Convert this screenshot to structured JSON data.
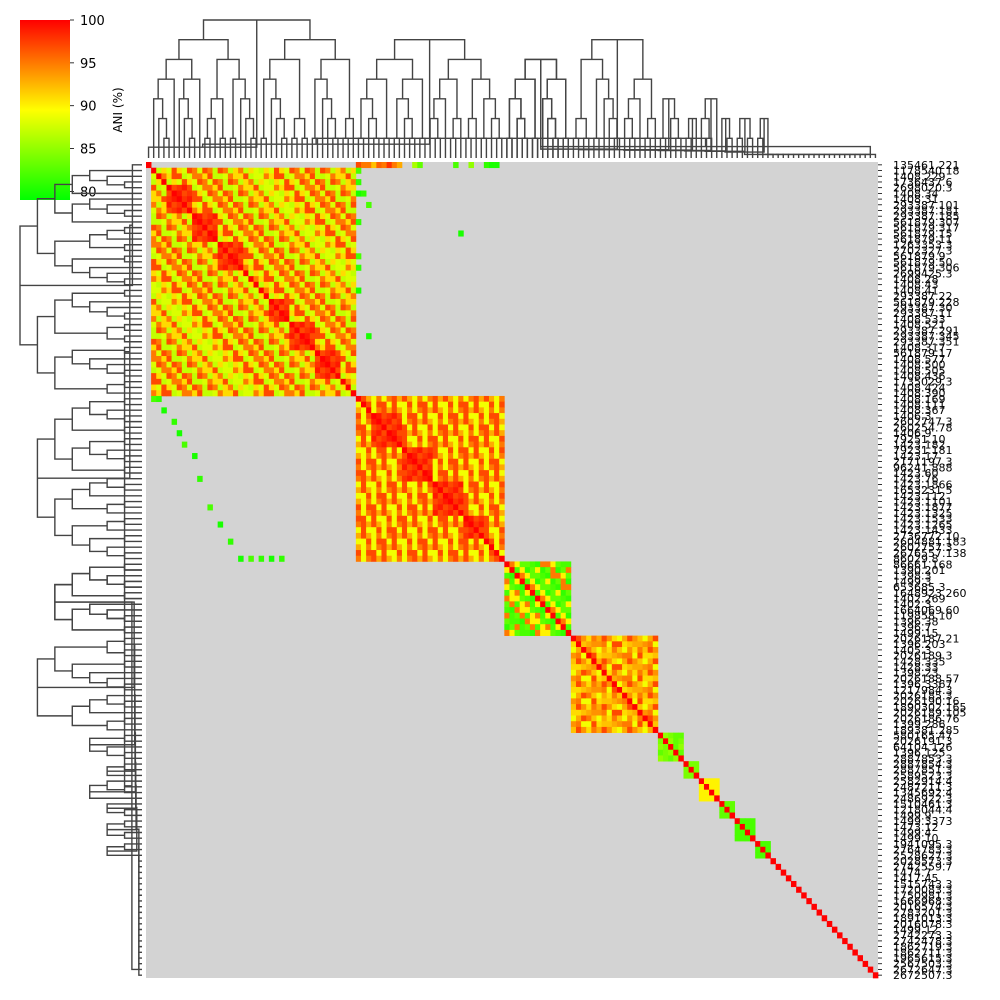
{
  "chart_data": {
    "type": "heatmap",
    "title": "",
    "xlabel": "",
    "ylabel": "",
    "colorbar": {
      "label": "ANI (%)",
      "ticks": [
        80,
        85,
        90,
        95,
        100
      ],
      "range": [
        79,
        100
      ],
      "colors": [
        "#00ff00",
        "#ffff00",
        "#ff0000"
      ]
    },
    "missing_color": "#d3d3d3",
    "dendrograms": [
      "top",
      "left"
    ],
    "row_labels": [
      "135461.221",
      "1178540.18",
      "1408.229",
      "1736437.6",
      "2698020.3",
      "1408.34",
      "1408.31",
      "293387.101",
      "293387.181",
      "293387.185",
      "561879.307",
      "561879.317",
      "561879.15",
      "561879.11",
      "1263353.3",
      "2702327.3",
      "561879.9",
      "561879.50",
      "561879.306",
      "2699425.3",
      "1408.28",
      "1408.43",
      "1408.41",
      "293387.22",
      "561879.228",
      "293387.30",
      "293387.11",
      "1408.533",
      "1408.521",
      "293387.291",
      "293387.345",
      "293387.351",
      "1408.317",
      "561879.17",
      "1408.577",
      "1408.500",
      "1408.505",
      "1408.436",
      "1735029.3",
      "1408.424",
      "1408.390",
      "1408.169",
      "1408.111",
      "1408.367",
      "1406.3",
      "2602747.3",
      "260254.78",
      "1406.9",
      "79251.10",
      "1423.182",
      "79231.181",
      "1423.17",
      "2171197.3",
      "96241.888",
      "1423.60",
      "1423.76",
      "1423.1866",
      "1653231.5",
      "1423.112",
      "1423.1101",
      "1423.1877",
      "1423.1325",
      "1423.1533",
      "1423.1265",
      "1423.1433",
      "2736772.10",
      "2604881.183",
      "2602757.3",
      "2676557.138",
      "86029.8",
      "86661.168",
      "1390.201",
      "1398.3",
      "1499.3",
      "653685.3",
      "1648923.260",
      "1402.269",
      "1402.3",
      "1664069.60",
      "119858.10",
      "1396.38",
      "1396.7",
      "1499.15",
      "2026187.21",
      "1396.203",
      "1405.3",
      "2026189.3",
      "1428.335",
      "1428.33",
      "1398.23",
      "2026188.57",
      "1396.3367",
      "1217984.3",
      "2026185.3",
      "2026190.16",
      "1890302.165",
      "2026189.105",
      "2026186.76",
      "1399.286",
      "189381.285",
      "580165.47",
      "2026191.3",
      "64104.126",
      "1396.125",
      "2887853.3",
      "2887854.3",
      "2887851.3",
      "2589523.3",
      "2582914.4",
      "2487211.3",
      "1345692.4",
      "2486922.3",
      "1510461.3",
      "1218044.4",
      "1499.9",
      "1499.3373",
      "1473.12",
      "1499.4",
      "1499.10",
      "1941095.3",
      "2764783.3",
      "2528627.3",
      "2028573.3",
      "2742559.7",
      "1474.7",
      "1417.45",
      "1515743.3",
      "1720083.3",
      "1750981.3",
      "1666968.3",
      "2016574.3",
      "2783201.3",
      "1891013.3",
      "2016078.3",
      "1499.12",
      "2742273.3",
      "2742478.3",
      "1862719.3",
      "1862711.3",
      "1965615.3",
      "2567503.3",
      "2672647.3",
      "2672507.3"
    ],
    "visible_row_labels": [
      "135461.221",
      "1178540.18",
      "1408.229",
      "1736437.6",
      "2698020.3",
      "1408.34",
      "1408.31",
      "293387.101",
      "293387.181",
      "293387.185",
      "561879.307",
      "561879.317",
      "561879.15",
      "561879.11",
      "1263353.3",
      "2702327.3",
      "561879.9",
      "561879.50",
      "561879.306",
      "2699425.3",
      "1408.28",
      "1408.43",
      "1408.41",
      "293387.22",
      "561879.228",
      "293387.30",
      "293387.11",
      "1408.533",
      "1408.521",
      "293387.291",
      "293387.345",
      "293387.351",
      "1408.317",
      "561879.17",
      "1408.577",
      "1408.500",
      "1408.505",
      "1408.436",
      "1735029.3",
      "1408.424",
      "1408.390",
      "1408.169",
      "1408.111",
      "1408.367",
      "1406.3",
      "2602747.3",
      "260254.78",
      "1406.9",
      "79251.10",
      "1423.182",
      "79231.181",
      "1423.17",
      "2171197.3",
      "96241.888",
      "1423.60",
      "1423.76",
      "1423.1866",
      "1653231.5",
      "1423.112",
      "1423.1101",
      "1423.1877",
      "1423.1325",
      "1423.1533",
      "1423.1265",
      "1423.1433",
      "2736772.10",
      "2604881.183",
      "2602757.3",
      "2676557.138",
      "86029.8",
      "86661.168",
      "1390.201",
      "1398.3",
      "1499.3",
      "653685.3",
      "1648923.260",
      "1402.269",
      "1402.3",
      "1664069.60",
      "119858.10",
      "1396.38",
      "1396.7",
      "1499.15",
      "2026187.21",
      "1396.203",
      "1405.3",
      "2026189.3",
      "1428.335",
      "1428.33",
      "1398.23",
      "2026188.57",
      "1396.3367",
      "1217984.3",
      "2026185.3",
      "2026190.16",
      "1890302.165",
      "2026189.105",
      "2026186.76",
      "1399.286",
      "189381.285",
      "580165.47",
      "2026191.3",
      "64104.126",
      "1396.125",
      "2887853.3",
      "2887854.3",
      "2887851.3",
      "2589523.3",
      "2582914.4",
      "2487211.3",
      "1345692.4",
      "2486922.3",
      "1510461.3",
      "1218044.4",
      "1499.9",
      "1499.3373",
      "1473.12",
      "1499.4",
      "1499.10",
      "1941095.3",
      "2764783.3",
      "2528627.3",
      "2028573.3",
      "2742559.7",
      "1474.7",
      "1417.45",
      "1515743.3",
      "1720083.3",
      "1750981.3",
      "1666968.3",
      "2016574.3",
      "2783201.3",
      "1891013.3",
      "2016078.3",
      "1499.12",
      "2742273.3",
      "2742478.3",
      "1862719.3",
      "1862711.3",
      "1965615.3",
      "2567503.3",
      "2672647.3",
      "2672507.3"
    ],
    "clusters": [
      {
        "start": 1,
        "end": 40,
        "inner_values": [
          88,
          92,
          97,
          90,
          95,
          99,
          87,
          93,
          91,
          96
        ],
        "sub_blocks": [
          [
            4,
            9
          ],
          [
            9,
            14
          ],
          [
            14,
            19
          ],
          [
            24,
            28
          ],
          [
            28,
            33
          ],
          [
            33,
            38
          ]
        ]
      },
      {
        "start": 41,
        "end": 69,
        "inner_values": [
          86,
          89,
          92,
          95,
          90,
          97,
          88,
          93
        ],
        "sub_blocks": [
          [
            44,
            50
          ],
          [
            50,
            56
          ],
          [
            56,
            62
          ],
          [
            62,
            66
          ]
        ]
      },
      {
        "start": 70,
        "end": 82,
        "inner_values": [
          81,
          82,
          83,
          90,
          95
        ]
      },
      {
        "start": 83,
        "end": 99,
        "inner_values": [
          89,
          91,
          93,
          95,
          97,
          92,
          94
        ]
      },
      {
        "start": 100,
        "end": 104,
        "inner_values": [
          83,
          85,
          84
        ]
      },
      {
        "start": 105,
        "end": 107,
        "inner_values": [
          86,
          84
        ]
      },
      {
        "start": 108,
        "end": 111,
        "inner_values": [
          90,
          92
        ]
      },
      {
        "start": 112,
        "end": 114,
        "inner_values": [
          82,
          83
        ]
      },
      {
        "start": 115,
        "end": 118,
        "inner_values": [
          82,
          81
        ]
      },
      {
        "start": 119,
        "end": 121,
        "inner_values": [
          82
        ]
      }
    ],
    "cross_cells": [
      [
        0,
        41,
        97
      ],
      [
        0,
        42,
        95
      ],
      [
        0,
        43,
        95
      ],
      [
        0,
        44,
        92
      ],
      [
        0,
        45,
        96
      ],
      [
        0,
        46,
        95
      ],
      [
        0,
        47,
        98
      ],
      [
        0,
        48,
        95
      ],
      [
        0,
        49,
        93
      ],
      [
        0,
        52,
        86
      ],
      [
        0,
        53,
        83
      ],
      [
        0,
        60,
        82
      ],
      [
        0,
        63,
        85
      ],
      [
        0,
        66,
        81
      ],
      [
        0,
        67,
        80
      ],
      [
        0,
        68,
        80
      ],
      [
        1,
        41,
        82
      ],
      [
        3,
        41,
        81
      ],
      [
        5,
        41,
        80
      ],
      [
        5,
        42,
        81
      ],
      [
        7,
        43,
        82
      ],
      [
        10,
        41,
        81
      ],
      [
        12,
        61,
        80
      ],
      [
        16,
        41,
        82
      ],
      [
        18,
        41,
        81
      ],
      [
        22,
        41,
        80
      ],
      [
        30,
        43,
        80
      ],
      [
        41,
        1,
        82
      ],
      [
        41,
        2,
        81
      ],
      [
        43,
        3,
        80
      ],
      [
        45,
        5,
        81
      ],
      [
        47,
        6,
        80
      ],
      [
        49,
        7,
        82
      ],
      [
        51,
        9,
        80
      ],
      [
        55,
        10,
        81
      ],
      [
        60,
        12,
        82
      ],
      [
        63,
        14,
        80
      ],
      [
        66,
        16,
        81
      ],
      [
        69,
        18,
        80
      ],
      [
        69,
        20,
        82
      ],
      [
        69,
        22,
        81
      ],
      [
        69,
        24,
        80
      ],
      [
        69,
        26,
        81
      ]
    ]
  }
}
